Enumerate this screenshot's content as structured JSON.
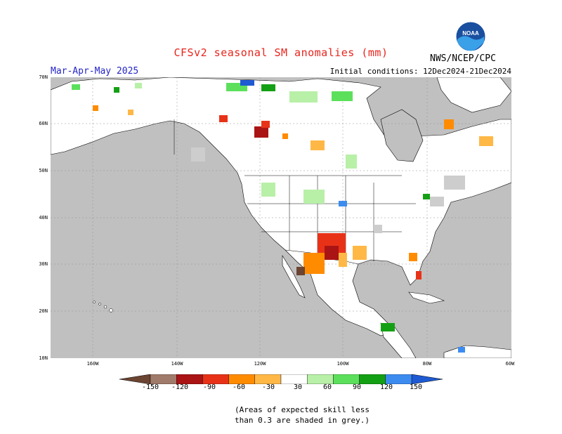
{
  "header": {
    "title": "CFSv2 seasonal SM anomalies (mm)",
    "agency": "NWS/NCEP/CPC",
    "logo_text": "NOAA",
    "season": "Mar-Apr-May 2025",
    "initial_conditions": "Initial conditions: 12Dec2024-21Dec2024"
  },
  "axes": {
    "lat_labels": [
      "70N",
      "60N",
      "50N",
      "40N",
      "30N",
      "20N",
      "10N"
    ],
    "lon_labels": [
      "160W",
      "140W",
      "120W",
      "100W",
      "80W",
      "60W"
    ]
  },
  "legend": {
    "tick_labels": [
      "-150",
      "-120",
      "-90",
      "-60",
      "-30",
      "30",
      "60",
      "90",
      "120",
      "150"
    ],
    "colors": [
      "#6b4432",
      "#a07a6a",
      "#aa1414",
      "#e83218",
      "#ff8c00",
      "#ffb846",
      "#ffffff",
      "#b8f0a8",
      "#5ce05c",
      "#14a014",
      "#3c8cf0",
      "#1e5ad2"
    ],
    "note_line1": "(Areas of expected skill less",
    "note_line2": "than 0.3 are shaded in grey.)"
  },
  "colors": {
    "land": "#ffffff",
    "ocean": "#c0c0c0",
    "low_skill": "#cdcdcd",
    "title": "#e8241c",
    "season": "#2424c8"
  }
}
